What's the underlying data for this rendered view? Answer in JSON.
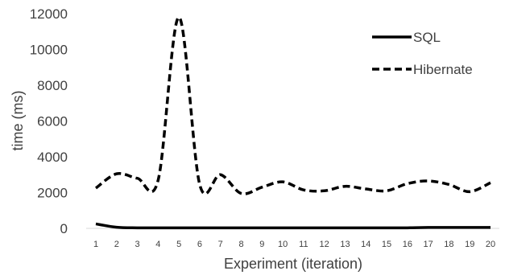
{
  "chart_data": {
    "type": "line",
    "title": "",
    "xlabel": "Experiment (iteration)",
    "ylabel": "time (ms)",
    "x": [
      1,
      2,
      3,
      4,
      5,
      6,
      7,
      8,
      9,
      10,
      11,
      12,
      13,
      14,
      15,
      16,
      17,
      18,
      19,
      20
    ],
    "ylim": [
      0,
      12000
    ],
    "yticks": [
      0,
      2000,
      4000,
      6000,
      8000,
      10000,
      12000
    ],
    "grid": false,
    "legend_position": "top-right",
    "series": [
      {
        "name": "SQL",
        "line_style": "solid",
        "color": "#000000",
        "values": [
          250,
          60,
          30,
          30,
          30,
          30,
          30,
          30,
          30,
          30,
          30,
          30,
          30,
          30,
          30,
          30,
          50,
          50,
          50,
          50
        ]
      },
      {
        "name": "Hibernate",
        "line_style": "dashed",
        "color": "#000000",
        "values": [
          2250,
          3050,
          2800,
          2700,
          11800,
          2450,
          3000,
          1950,
          2300,
          2600,
          2150,
          2100,
          2350,
          2200,
          2100,
          2500,
          2650,
          2450,
          2050,
          2550
        ]
      }
    ]
  }
}
